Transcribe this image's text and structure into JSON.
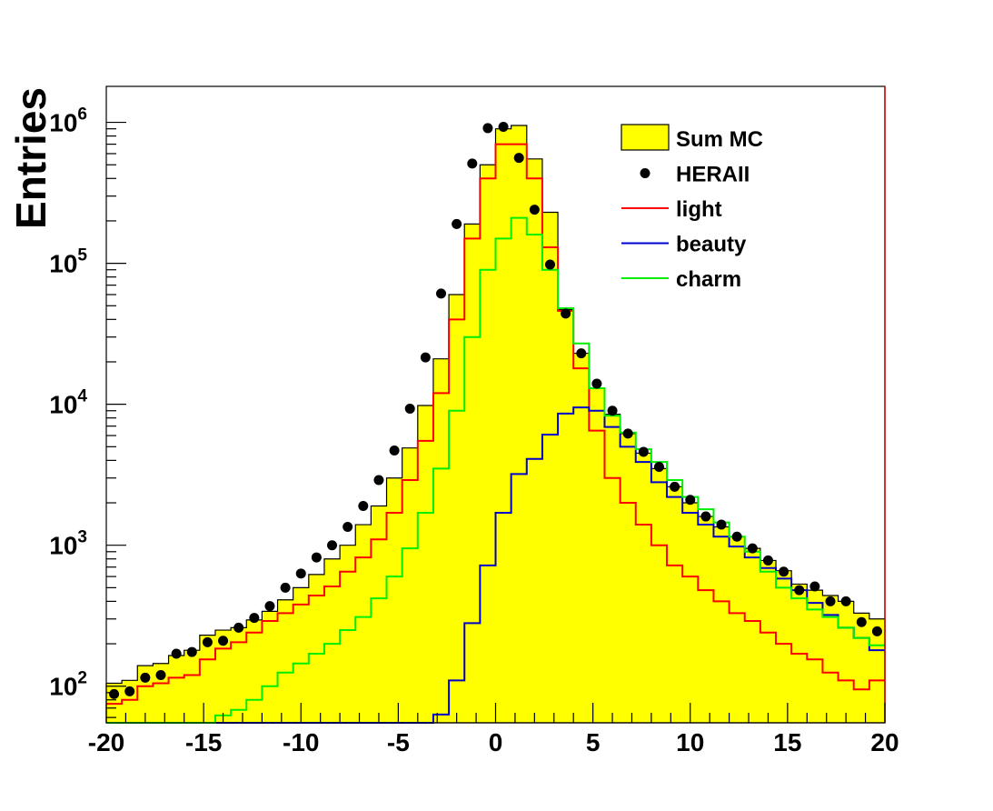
{
  "chart_data": {
    "type": "histogram",
    "ylabel": "Entries",
    "xlabel": "",
    "log_y": true,
    "xlim": [
      -20,
      20
    ],
    "ylim": [
      55,
      1800000
    ],
    "x_ticks": [
      "-20",
      "-15",
      "-10",
      "-5",
      "0",
      "5",
      "10",
      "15",
      "20"
    ],
    "y_ticks": [
      {
        "base": "10",
        "exp": "2"
      },
      {
        "base": "10",
        "exp": "3"
      },
      {
        "base": "10",
        "exp": "4"
      },
      {
        "base": "10",
        "exp": "5"
      },
      {
        "base": "10",
        "exp": "6"
      }
    ],
    "bin_edges_start": -20,
    "bin_width": 0.8,
    "colors": {
      "sum_mc": "#ffff00",
      "herall": "#000000",
      "light": "#ff0000",
      "beauty": "#0000cc",
      "charm": "#00ee00"
    },
    "legend": [
      {
        "key": "sum_mc",
        "label": "Sum MC"
      },
      {
        "key": "herall",
        "label": "HERAII"
      },
      {
        "key": "light",
        "label": "light"
      },
      {
        "key": "beauty",
        "label": "beauty"
      },
      {
        "key": "charm",
        "label": "charm"
      }
    ],
    "series": [
      {
        "name": "Sum MC",
        "key": "sum_mc",
        "style": "filled-step",
        "values": [
          105,
          110,
          140,
          145,
          165,
          180,
          230,
          250,
          260,
          295,
          340,
          410,
          500,
          620,
          800,
          1000,
          1400,
          1900,
          3000,
          4900,
          9800,
          21000,
          60000,
          190000,
          500000,
          900000,
          950000,
          550000,
          230000,
          47000,
          23000,
          13000,
          8500,
          6200,
          4500,
          3500,
          2600,
          2000,
          1600,
          1350,
          1150,
          950,
          780,
          660,
          530,
          480,
          440,
          400,
          330,
          300
        ]
      },
      {
        "name": "HERAII",
        "key": "herall",
        "style": "points",
        "values": [
          88,
          92,
          115,
          120,
          170,
          175,
          205,
          210,
          260,
          305,
          370,
          500,
          630,
          820,
          1000,
          1350,
          1900,
          2900,
          4700,
          9300,
          21500,
          61000,
          190000,
          510000,
          910000,
          930000,
          560000,
          240000,
          98000,
          44000,
          23000,
          14000,
          9000,
          6200,
          4600,
          3600,
          2600,
          2100,
          1600,
          1400,
          1150,
          950,
          780,
          650,
          480,
          510,
          400,
          400,
          285,
          245
        ]
      },
      {
        "name": "light",
        "key": "light",
        "style": "step",
        "values": [
          75,
          80,
          100,
          105,
          115,
          120,
          155,
          185,
          205,
          240,
          290,
          330,
          380,
          440,
          510,
          650,
          820,
          1100,
          1700,
          2900,
          5500,
          12000,
          40000,
          150000,
          400000,
          700000,
          700000,
          400000,
          130000,
          46000,
          18000,
          6500,
          3000,
          2000,
          1400,
          1000,
          720,
          600,
          480,
          400,
          330,
          290,
          240,
          200,
          170,
          155,
          125,
          110,
          95,
          110
        ]
      },
      {
        "name": "beauty",
        "key": "beauty",
        "style": "step",
        "values": [
          50,
          50,
          50,
          50,
          50,
          50,
          50,
          50,
          50,
          50,
          50,
          50,
          50,
          50,
          50,
          50,
          50,
          50,
          50,
          50,
          50,
          63,
          110,
          280,
          720,
          1700,
          3200,
          4100,
          6100,
          8600,
          9500,
          9000,
          6900,
          5000,
          3900,
          2800,
          2200,
          1700,
          1400,
          1150,
          980,
          820,
          690,
          580,
          480,
          390,
          320,
          260,
          220,
          180
        ]
      },
      {
        "name": "charm",
        "key": "charm",
        "style": "step",
        "values": [
          55,
          55,
          55,
          55,
          55,
          55,
          55,
          62,
          68,
          80,
          100,
          125,
          145,
          170,
          200,
          250,
          310,
          420,
          600,
          950,
          1700,
          3500,
          9000,
          30000,
          90000,
          150000,
          210000,
          160000,
          90000,
          48000,
          27000,
          13000,
          8300,
          6300,
          4800,
          3900,
          2900,
          2200,
          1800,
          1450,
          1150,
          900,
          650,
          500,
          420,
          350,
          310,
          260,
          220,
          195
        ]
      }
    ]
  }
}
